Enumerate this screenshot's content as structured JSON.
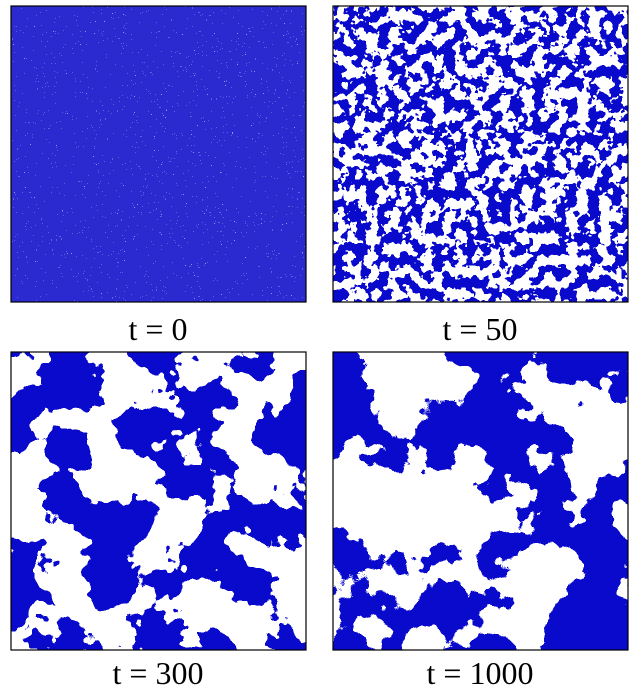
{
  "panels": [
    {
      "label": "t = 0"
    },
    {
      "label": "t = 50"
    },
    {
      "label": "t = 300"
    },
    {
      "label": "t = 1000"
    }
  ]
}
